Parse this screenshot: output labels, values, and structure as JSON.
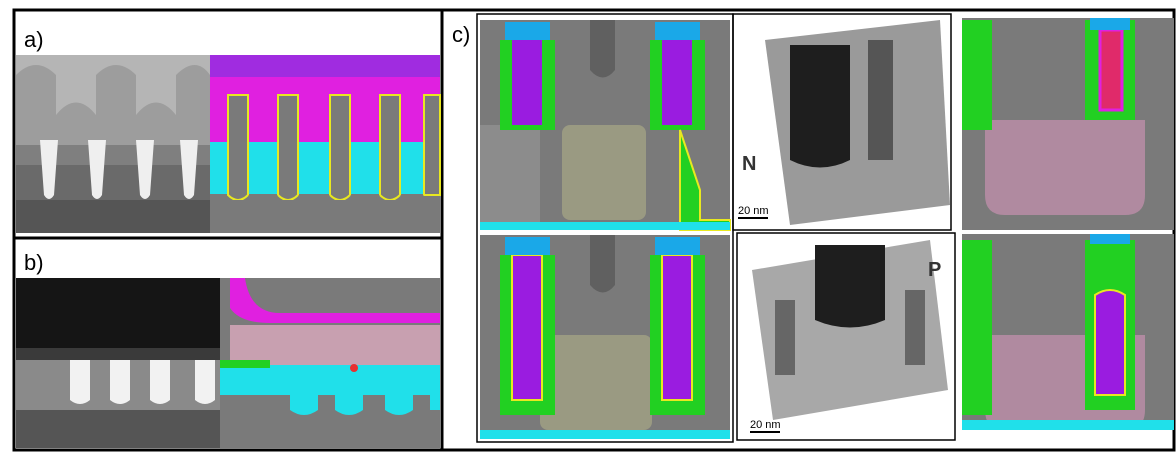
{
  "panels": {
    "a": "a)",
    "b": "b)",
    "c": "c)"
  },
  "tem_labels": {
    "n": "N",
    "p": "P"
  },
  "scale_bars": {
    "n": "20 nm",
    "p": "20 nm"
  }
}
